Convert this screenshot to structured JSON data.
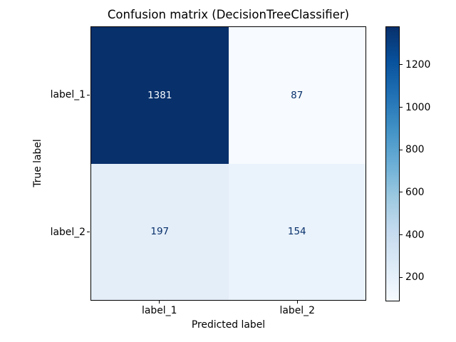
{
  "figure": {
    "background": "#ffffff"
  },
  "chart_data": {
    "type": "heatmap",
    "title": "Confusion matrix (DecisionTreeClassifier)",
    "xlabel": "Predicted label",
    "ylabel": "True label",
    "x_tick_labels": [
      "label_1",
      "label_2"
    ],
    "y_tick_labels": [
      "label_1",
      "label_2"
    ],
    "matrix": [
      [
        1381,
        87
      ],
      [
        197,
        154
      ]
    ],
    "vmin": 87,
    "vmax": 1381,
    "colormap_name": "Blues",
    "grid": false,
    "cell_colors": [
      [
        "#08306b",
        "#f7fbff"
      ],
      [
        "#e4eef8",
        "#eaf2fb"
      ]
    ],
    "cell_text_colors": [
      [
        "#f7fbff",
        "#08306b"
      ],
      [
        "#08306b",
        "#08306b"
      ]
    ],
    "colorbar": {
      "position": "right",
      "tick_labels": [
        "200",
        "400",
        "600",
        "800",
        "1000",
        "1200"
      ],
      "tick_values": [
        200,
        400,
        600,
        800,
        1000,
        1200
      ],
      "gradient_stops": [
        "#f7fbff",
        "#deebf7",
        "#c6dbef",
        "#9ecae1",
        "#6baed6",
        "#4292c6",
        "#2171b5",
        "#08519c",
        "#08306b"
      ]
    }
  }
}
